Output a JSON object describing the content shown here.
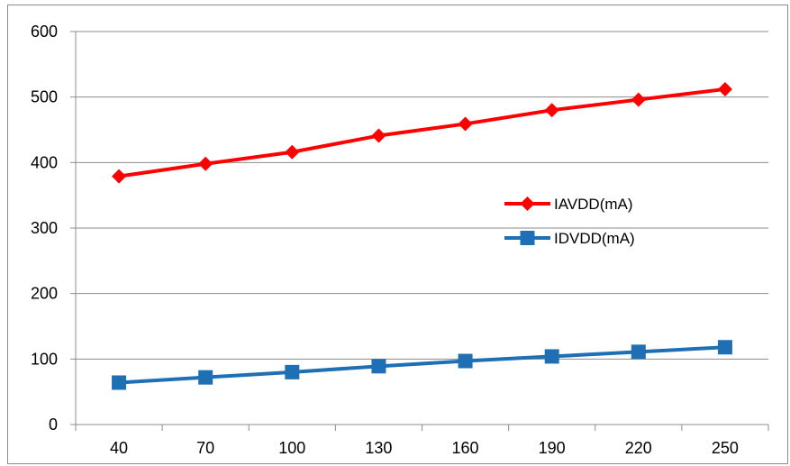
{
  "chart_data": {
    "type": "line",
    "title": "",
    "xlabel": "",
    "ylabel": "",
    "categories": [
      "40",
      "70",
      "100",
      "130",
      "160",
      "190",
      "220",
      "250"
    ],
    "ylim": [
      0,
      600
    ],
    "yticks": [
      "0",
      "100",
      "200",
      "300",
      "400",
      "500",
      "600"
    ],
    "grid": true,
    "legend_position": "center-right",
    "series": [
      {
        "name": "IAVDD(mA)",
        "color": "#ff0000",
        "marker": "diamond",
        "values": [
          379,
          398,
          416,
          441,
          459,
          480,
          496,
          512
        ]
      },
      {
        "name": "IDVDD(mA)",
        "color": "#1f6fb5",
        "marker": "square",
        "values": [
          64,
          72,
          80,
          89,
          97,
          104,
          111,
          118
        ]
      }
    ]
  }
}
